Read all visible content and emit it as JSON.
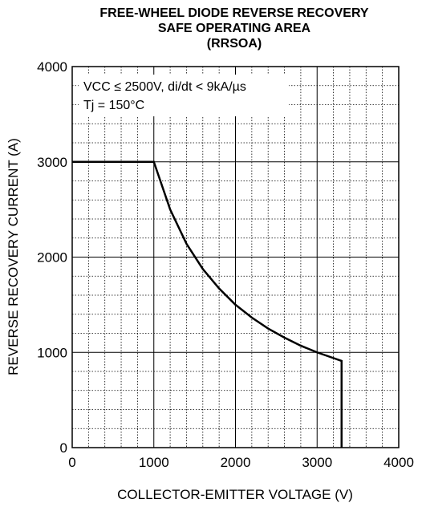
{
  "chart_data": {
    "type": "line",
    "title": [
      "FREE-WHEEL DIODE REVERSE RECOVERY",
      "SAFE OPERATING AREA",
      "(RRSOA)"
    ],
    "xlabel": "COLLECTOR-EMITTER VOLTAGE (V)",
    "ylabel": "REVERSE RECOVERY CURRENT (A)",
    "annotations": [
      "VCC ≤ 2500V, di/dt < 9kA/µs",
      "Tj = 150°C"
    ],
    "series": [
      {
        "color": "#000000",
        "x": [
          0,
          1000,
          1200,
          1400,
          1600,
          1800,
          2000,
          2200,
          2400,
          2600,
          2800,
          3000,
          3200,
          3300,
          3300
        ],
        "values": [
          3000,
          3000,
          2500,
          2140,
          1875,
          1670,
          1500,
          1365,
          1250,
          1155,
          1070,
          1000,
          940,
          910,
          0
        ]
      }
    ],
    "xlim": [
      0,
      4000
    ],
    "ylim": [
      0,
      4000
    ],
    "xticks": [
      0,
      1000,
      2000,
      3000,
      4000
    ],
    "yticks": [
      0,
      1000,
      2000,
      3000,
      4000
    ],
    "minor_xticks": [
      200,
      400,
      600,
      800,
      1200,
      1400,
      1600,
      1800,
      2200,
      2400,
      2600,
      2800,
      3200,
      3400,
      3600,
      3800
    ],
    "minor_yticks": [
      200,
      400,
      600,
      800,
      1200,
      1400,
      1600,
      1800,
      2200,
      2400,
      2600,
      2800,
      3200,
      3400,
      3600,
      3800
    ],
    "grid": true
  }
}
